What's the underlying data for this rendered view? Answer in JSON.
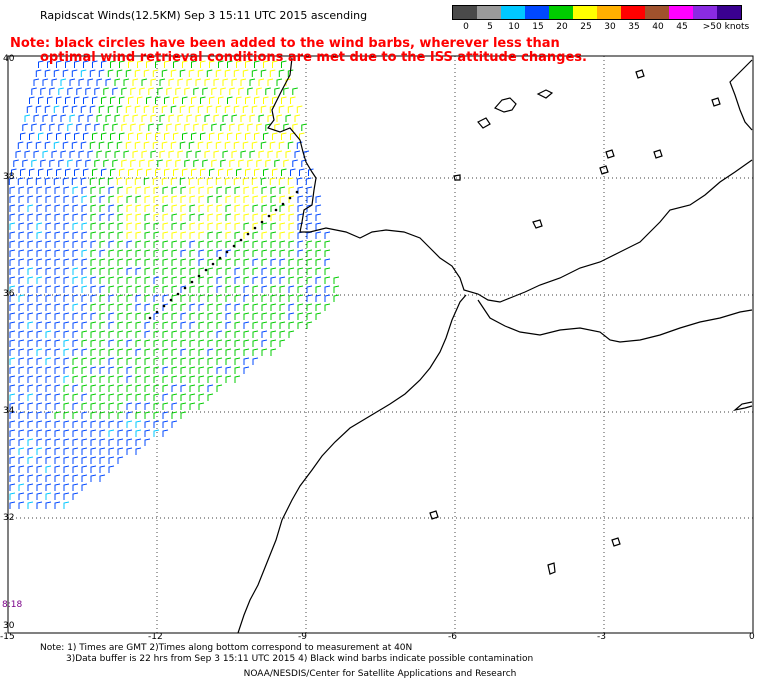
{
  "header": {
    "title": "Rapidscat Winds(12.5KM) Sep  3 15:11 UTC 2015 ascending",
    "note_line1": "Note: black circles have been added to the wind barbs, wherever less than",
    "note_line2": "optimal wind retrieval conditions are met due to the ISS attitude changes."
  },
  "legend": {
    "labels": [
      "0",
      "5",
      "10",
      "15",
      "20",
      "25",
      "30",
      "35",
      "40",
      "45",
      ">50 knots"
    ],
    "colors": [
      "#4a4a4a",
      "#9a9a9a",
      "#00c8ff",
      "#0048ff",
      "#00cc00",
      "#ffff00",
      "#ffb000",
      "#ff0000",
      "#a0522d",
      "#ff00ff",
      "#8a2be2",
      "#3a0090"
    ]
  },
  "map": {
    "lon_labels": [
      "-15",
      "-12",
      "-9",
      "-6",
      "-3",
      "0"
    ],
    "lat_labels": [
      "40",
      "38",
      "36",
      "34",
      "32",
      "30"
    ],
    "time_label": "8:18",
    "barb_colors": {
      "calm_low": "#0048ff",
      "moderate": "#00cc00",
      "strong": "#ffff00",
      "contamination": "#000000",
      "light": "#00c8ff"
    }
  },
  "footer": {
    "line1": "Note: 1) Times are GMT 2)Times along bottom correspond to measurement at 40N",
    "line2": "3)Data buffer is 22 hrs from Sep  3 15:11 UTC 2015 4) Black wind barbs indicate possible contamination",
    "credit": "NOAA/NESDIS/Center for Satellite Applications and Research"
  }
}
